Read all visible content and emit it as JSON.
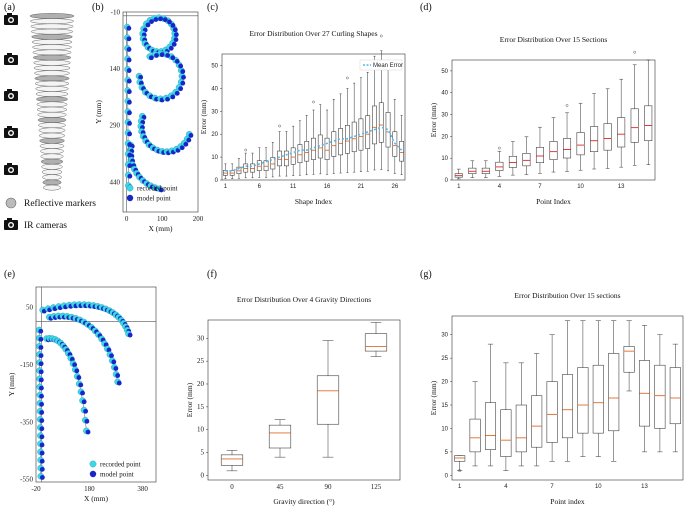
{
  "figure_labels": {
    "a": "(a)",
    "b": "(b)",
    "c": "(c)",
    "d": "(d)",
    "e": "(e)",
    "f": "(f)",
    "g": "(g)"
  },
  "legend_a": {
    "markers": "Reflective markers",
    "cameras": "IR cameras"
  },
  "colors": {
    "recorded": "#3fd6e8",
    "model": "#1626c8",
    "box": "#333333",
    "median": "#e06a2a",
    "mean": "#5ab4e8",
    "box_fill": "#ffffff"
  },
  "chart_data": [
    {
      "id": "b",
      "type": "scatter",
      "xlabel": "X (mm)",
      "ylabel": "Y (mm)",
      "xticks": [
        "0",
        "100",
        "200"
      ],
      "yticks": [
        "-10",
        "140",
        "290",
        "440"
      ],
      "xlim": [
        -10,
        200
      ],
      "ylim": [
        -10,
        520
      ],
      "legend": [
        "recorded point",
        "model point"
      ]
    },
    {
      "id": "c",
      "type": "box",
      "title": "Error Distribution Over 27 Curling Shapes",
      "xlabel": "Shape Index",
      "ylabel": "Error (mm)",
      "xticks": [
        "1",
        "6",
        "11",
        "16",
        "21",
        "26"
      ],
      "yticks": [
        "0",
        "10",
        "20",
        "30",
        "40",
        "50"
      ],
      "ylim": [
        0,
        55
      ],
      "legend": [
        "Mean Error"
      ],
      "medians": [
        3,
        3,
        4,
        5,
        5,
        6,
        6,
        7,
        9,
        9,
        10,
        11,
        12,
        13,
        14,
        13,
        15,
        16,
        17,
        18,
        19,
        20,
        23,
        24,
        21,
        15,
        12
      ],
      "means": [
        4,
        4,
        5,
        6,
        6,
        7,
        8,
        9,
        10,
        11,
        12,
        13,
        13,
        14,
        15,
        16,
        17,
        18,
        18,
        19,
        20,
        21,
        22,
        23,
        22,
        16,
        13
      ]
    },
    {
      "id": "d",
      "type": "box",
      "title": "Error Distribution Over 15 Sections",
      "xlabel": "Point Index",
      "ylabel": "Error (mm)",
      "xticks": [
        "1",
        "4",
        "7",
        "10",
        "13"
      ],
      "yticks": [
        "0",
        "10",
        "20",
        "30",
        "40",
        "50"
      ],
      "ylim": [
        0,
        55
      ],
      "medians": [
        2,
        4,
        4,
        6,
        8,
        9,
        11,
        13,
        14,
        16,
        18,
        19,
        21,
        24,
        25
      ]
    },
    {
      "id": "e",
      "type": "scatter",
      "xlabel": "X (mm)",
      "ylabel": "Y (mm)",
      "xticks": [
        "-20",
        "180",
        "380"
      ],
      "yticks": [
        "50",
        "-150",
        "-350",
        "-550"
      ],
      "xlim": [
        -20,
        430
      ],
      "ylim": [
        -560,
        120
      ],
      "legend": [
        "recorded point",
        "model point"
      ]
    },
    {
      "id": "f",
      "type": "box",
      "title": "Error Distribution Over 4 Gravity Directions",
      "xlabel": "Gravity direction (°)",
      "ylabel": "Error (mm)",
      "categories": [
        "0",
        "45",
        "90",
        "125"
      ],
      "yticks": [
        "0",
        "5",
        "10",
        "15",
        "20",
        "25",
        "30"
      ],
      "ylim": [
        -1,
        34
      ],
      "boxes": [
        {
          "min": 1,
          "q1": 2.2,
          "median": 3.6,
          "q3": 4.5,
          "max": 5.5
        },
        {
          "min": 4,
          "q1": 6.0,
          "median": 9.3,
          "q3": 11.0,
          "max": 12.2
        },
        {
          "min": 4,
          "q1": 11.2,
          "median": 18.5,
          "q3": 21.8,
          "max": 29.5
        },
        {
          "min": 26,
          "q1": 27.2,
          "median": 28.2,
          "q3": 31,
          "max": 33.5
        }
      ]
    },
    {
      "id": "g",
      "type": "box",
      "title": "Error Distribution Over  15 sections",
      "xlabel": "Point index",
      "ylabel": "Error (mm)",
      "xticks": [
        "1",
        "4",
        "7",
        "10",
        "13"
      ],
      "yticks": [
        "0",
        "5",
        "10",
        "15",
        "20",
        "25",
        "30"
      ],
      "ylim": [
        -1,
        34
      ],
      "boxes": [
        {
          "min": 1,
          "q1": 3.0,
          "median": 3.7,
          "q3": 4.2,
          "max": 4.2,
          "outlier": 1
        },
        {
          "min": 2,
          "q1": 5,
          "median": 8,
          "q3": 12,
          "max": 20
        },
        {
          "min": 2,
          "q1": 5.5,
          "median": 8.5,
          "q3": 15.5,
          "max": 28
        },
        {
          "min": 1,
          "q1": 4,
          "median": 7.5,
          "q3": 14,
          "max": 24
        },
        {
          "min": 2,
          "q1": 5,
          "median": 8,
          "q3": 15,
          "max": 24
        },
        {
          "min": 2,
          "q1": 6,
          "median": 10.5,
          "q3": 17,
          "max": 26
        },
        {
          "min": 3,
          "q1": 7,
          "median": 13,
          "q3": 20,
          "max": 30
        },
        {
          "min": 3,
          "q1": 8,
          "median": 14,
          "q3": 21.5,
          "max": 33
        },
        {
          "min": 4,
          "q1": 9,
          "median": 15,
          "q3": 23,
          "max": 33
        },
        {
          "min": 4,
          "q1": 9,
          "median": 15.5,
          "q3": 23.5,
          "max": 33
        },
        {
          "min": 3,
          "q1": 9.5,
          "median": 16.5,
          "q3": 26,
          "max": 33
        },
        {
          "min": 18,
          "q1": 22,
          "median": 26.5,
          "q3": 27.5,
          "max": 33
        },
        {
          "min": 5,
          "q1": 10.5,
          "median": 17.5,
          "q3": 24.5,
          "max": 32
        },
        {
          "min": 5,
          "q1": 10,
          "median": 17,
          "q3": 23.5,
          "max": 30
        },
        {
          "min": 5,
          "q1": 11,
          "median": 16.5,
          "q3": 23,
          "max": 28
        }
      ]
    }
  ]
}
